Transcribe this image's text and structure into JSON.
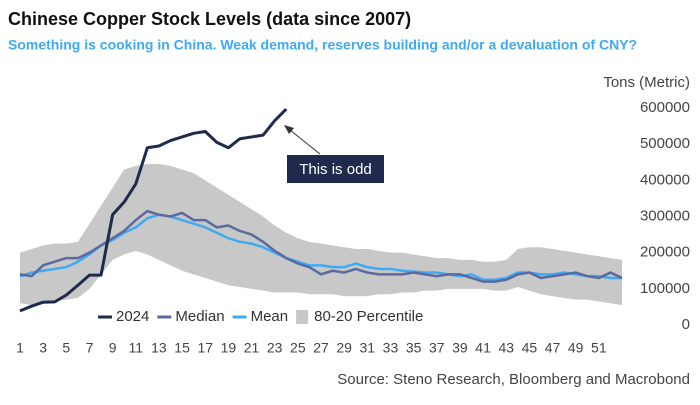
{
  "chart_data": {
    "type": "line",
    "title": "Chinese Copper Stock Levels (data since 2007)",
    "subtitle": "Something is cooking in China. Weak demand, reserves building and/or a devaluation of CNY?",
    "y_label": "Tons (Metric)",
    "annotation": "This is odd",
    "source": "Source: Steno Research, Bloomberg and Macrobond",
    "x": [
      1,
      2,
      3,
      4,
      5,
      6,
      7,
      8,
      9,
      10,
      11,
      12,
      13,
      14,
      15,
      16,
      17,
      18,
      19,
      20,
      21,
      22,
      23,
      24,
      25,
      26,
      27,
      28,
      29,
      30,
      31,
      32,
      33,
      34,
      35,
      36,
      37,
      38,
      39,
      40,
      41,
      42,
      43,
      44,
      45,
      46,
      47,
      48,
      49,
      50,
      51,
      52,
      53
    ],
    "xlim": [
      1,
      53
    ],
    "xticks": [
      1,
      3,
      5,
      7,
      9,
      11,
      13,
      15,
      17,
      19,
      21,
      23,
      25,
      27,
      29,
      31,
      33,
      35,
      37,
      39,
      41,
      43,
      45,
      47,
      49,
      51
    ],
    "ylim": [
      0,
      600000
    ],
    "yticks": [
      0,
      100000,
      200000,
      300000,
      400000,
      500000,
      600000
    ],
    "series": [
      {
        "name": "2024",
        "color": "#1f2a4d",
        "values": [
          39000,
          52000,
          63000,
          64000,
          83000,
          110000,
          138000,
          138000,
          305000,
          340000,
          390000,
          490000,
          495000,
          510000,
          520000,
          530000,
          535000,
          505000,
          490000,
          515000,
          520000,
          525000,
          565000,
          597000,
          null,
          null,
          null,
          null,
          null,
          null,
          null,
          null,
          null,
          null,
          null,
          null,
          null,
          null,
          null,
          null,
          null,
          null,
          null,
          null,
          null,
          null,
          null,
          null,
          null,
          null,
          null,
          null,
          null
        ]
      },
      {
        "name": "Median",
        "color": "#5b6a9e",
        "values": [
          140000,
          135000,
          165000,
          175000,
          185000,
          185000,
          200000,
          220000,
          240000,
          260000,
          290000,
          315000,
          305000,
          300000,
          310000,
          290000,
          290000,
          270000,
          275000,
          260000,
          250000,
          230000,
          205000,
          185000,
          170000,
          160000,
          140000,
          150000,
          145000,
          155000,
          145000,
          140000,
          140000,
          140000,
          145000,
          140000,
          135000,
          140000,
          140000,
          130000,
          120000,
          120000,
          125000,
          140000,
          145000,
          130000,
          135000,
          140000,
          145000,
          135000,
          130000,
          145000,
          130000
        ]
      },
      {
        "name": "Mean",
        "color": "#3fa9f5",
        "values": [
          135000,
          145000,
          150000,
          155000,
          160000,
          175000,
          195000,
          220000,
          235000,
          255000,
          270000,
          295000,
          305000,
          300000,
          290000,
          280000,
          270000,
          255000,
          240000,
          230000,
          225000,
          215000,
          200000,
          185000,
          175000,
          165000,
          165000,
          160000,
          160000,
          170000,
          160000,
          155000,
          155000,
          150000,
          148000,
          145000,
          145000,
          140000,
          135000,
          140000,
          125000,
          125000,
          130000,
          145000,
          145000,
          140000,
          140000,
          145000,
          140000,
          135000,
          135000,
          130000,
          130000
        ]
      }
    ],
    "band": {
      "name": "80-20 Percentile",
      "color": "#c8c8c8",
      "high": [
        200000,
        210000,
        220000,
        225000,
        225000,
        230000,
        280000,
        330000,
        380000,
        430000,
        440000,
        445000,
        445000,
        440000,
        430000,
        420000,
        400000,
        380000,
        360000,
        340000,
        320000,
        300000,
        275000,
        255000,
        240000,
        230000,
        225000,
        220000,
        215000,
        210000,
        210000,
        205000,
        200000,
        200000,
        195000,
        190000,
        185000,
        185000,
        180000,
        180000,
        175000,
        175000,
        180000,
        210000,
        215000,
        215000,
        210000,
        205000,
        200000,
        195000,
        190000,
        185000,
        180000
      ],
      "low": [
        60000,
        55000,
        60000,
        65000,
        70000,
        75000,
        100000,
        140000,
        180000,
        195000,
        205000,
        195000,
        180000,
        165000,
        150000,
        140000,
        130000,
        120000,
        110000,
        105000,
        100000,
        95000,
        90000,
        90000,
        90000,
        85000,
        85000,
        85000,
        80000,
        80000,
        80000,
        85000,
        85000,
        90000,
        90000,
        95000,
        95000,
        100000,
        100000,
        100000,
        100000,
        95000,
        95000,
        105000,
        95000,
        85000,
        80000,
        75000,
        70000,
        70000,
        65000,
        60000,
        55000
      ]
    }
  }
}
